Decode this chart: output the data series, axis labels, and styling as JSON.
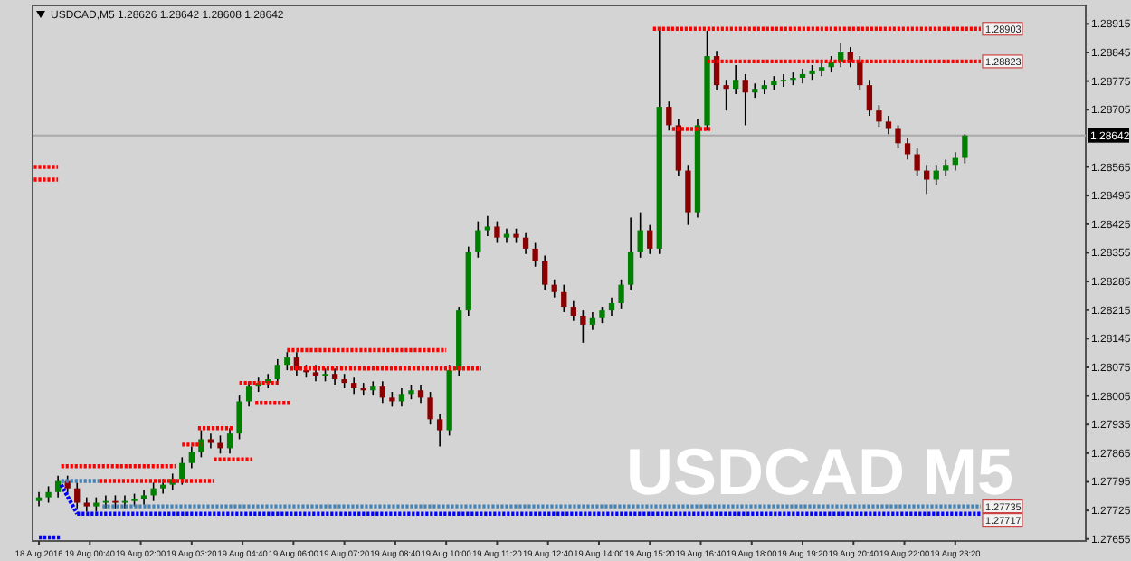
{
  "chart_data": {
    "type": "candlestick",
    "title": "USDCAD,M5  1.28626 1.28642 1.28608 1.28642",
    "annotations": [
      "USDCAD M5",
      {
        "text": "1.28903",
        "x": "2016-08-20T00:00",
        "y": 1.28903
      },
      {
        "text": "1.28823",
        "x": "2016-08-20T00:00",
        "y": 1.28823
      },
      {
        "text": "1.27735",
        "x": "2016-08-20T00:00",
        "y": 1.27735
      },
      {
        "text": "1.27717",
        "x": "2016-08-20T00:00",
        "y": 1.27717
      }
    ],
    "xlim": [
      "2016-08-18T23:10",
      "2016-08-20T02:45"
    ],
    "xticks": [
      {
        "value": "2016-08-18T23:20",
        "label": "18 Aug 2016"
      },
      {
        "value": "2016-08-19T00:40",
        "label": "19 Aug 00:40"
      },
      {
        "value": "2016-08-19T02:00",
        "label": "19 Aug 02:00"
      },
      {
        "value": "2016-08-19T03:20",
        "label": "19 Aug 03:20"
      },
      {
        "value": "2016-08-19T04:40",
        "label": "19 Aug 04:40"
      },
      {
        "value": "2016-08-19T06:00",
        "label": "19 Aug 06:00"
      },
      {
        "value": "2016-08-19T07:20",
        "label": "19 Aug 07:20"
      },
      {
        "value": "2016-08-19T08:40",
        "label": "19 Aug 08:40"
      },
      {
        "value": "2016-08-19T10:00",
        "label": "19 Aug 10:00"
      },
      {
        "value": "2016-08-19T11:20",
        "label": "19 Aug 11:20"
      },
      {
        "value": "2016-08-19T12:40",
        "label": "19 Aug 12:40"
      },
      {
        "value": "2016-08-19T14:00",
        "label": "19 Aug 14:00"
      },
      {
        "value": "2016-08-19T15:20",
        "label": "19 Aug 15:20"
      },
      {
        "value": "2016-08-19T16:40",
        "label": "19 Aug 16:40"
      },
      {
        "value": "2016-08-19T18:00",
        "label": "19 Aug 18:00"
      },
      {
        "value": "2016-08-19T19:20",
        "label": "19 Aug 19:20"
      },
      {
        "value": "2016-08-19T20:40",
        "label": "19 Aug 20:40"
      },
      {
        "value": "2016-08-19T22:00",
        "label": "19 Aug 22:00"
      },
      {
        "value": "2016-08-19T23:20",
        "label": "19 Aug 23:20"
      }
    ],
    "ylim": [
      1.2765,
      1.2896
    ],
    "yticks": [
      1.27655,
      1.27725,
      1.27795,
      1.27865,
      1.27935,
      1.28005,
      1.28075,
      1.28145,
      1.28215,
      1.28285,
      1.28355,
      1.28425,
      1.28495,
      1.28565,
      1.28705,
      1.28775,
      1.28845,
      1.28915
    ],
    "ref_lines": [
      {
        "axis": "y",
        "value": 1.28642,
        "label": "1.28642",
        "color": "#a9a9a9"
      }
    ],
    "series": [
      {
        "x": [
          "2016-08-18T23:20",
          "2016-08-18T23:35",
          "2016-08-18T23:50",
          "2016-08-19T00:05",
          "2016-08-19T00:20",
          "2016-08-19T00:35",
          "2016-08-19T00:50",
          "2016-08-19T01:05",
          "2016-08-19T01:20",
          "2016-08-19T01:35",
          "2016-08-19T01:50",
          "2016-08-19T02:05",
          "2016-08-19T02:20",
          "2016-08-19T02:35",
          "2016-08-19T02:50",
          "2016-08-19T03:05",
          "2016-08-19T03:20",
          "2016-08-19T03:35",
          "2016-08-19T03:50",
          "2016-08-19T04:05",
          "2016-08-19T04:20",
          "2016-08-19T04:35",
          "2016-08-19T04:50",
          "2016-08-19T05:05",
          "2016-08-19T05:20",
          "2016-08-19T05:35",
          "2016-08-19T05:50",
          "2016-08-19T06:05",
          "2016-08-19T06:20",
          "2016-08-19T06:35",
          "2016-08-19T06:50",
          "2016-08-19T07:05",
          "2016-08-19T07:20",
          "2016-08-19T07:35",
          "2016-08-19T07:50",
          "2016-08-19T08:05",
          "2016-08-19T08:20",
          "2016-08-19T08:35",
          "2016-08-19T08:50",
          "2016-08-19T09:05",
          "2016-08-19T09:20",
          "2016-08-19T09:35",
          "2016-08-19T09:50",
          "2016-08-19T10:05",
          "2016-08-19T10:20",
          "2016-08-19T10:35",
          "2016-08-19T10:50",
          "2016-08-19T11:05",
          "2016-08-19T11:20",
          "2016-08-19T11:35",
          "2016-08-19T11:50",
          "2016-08-19T12:05",
          "2016-08-19T12:20",
          "2016-08-19T12:35",
          "2016-08-19T12:50",
          "2016-08-19T13:05",
          "2016-08-19T13:20",
          "2016-08-19T13:35",
          "2016-08-19T13:50",
          "2016-08-19T14:05",
          "2016-08-19T14:20",
          "2016-08-19T14:35",
          "2016-08-19T14:50",
          "2016-08-19T15:05",
          "2016-08-19T15:20",
          "2016-08-19T15:35",
          "2016-08-19T15:50",
          "2016-08-19T16:05",
          "2016-08-19T16:20",
          "2016-08-19T16:35",
          "2016-08-19T16:50",
          "2016-08-19T17:05",
          "2016-08-19T17:20",
          "2016-08-19T17:35",
          "2016-08-19T17:50",
          "2016-08-19T18:05",
          "2016-08-19T18:20",
          "2016-08-19T18:35",
          "2016-08-19T18:50",
          "2016-08-19T19:05",
          "2016-08-19T19:20",
          "2016-08-19T19:35",
          "2016-08-19T19:50",
          "2016-08-19T20:05",
          "2016-08-19T20:20",
          "2016-08-19T20:35",
          "2016-08-19T20:50",
          "2016-08-19T21:05",
          "2016-08-19T21:20",
          "2016-08-19T21:35",
          "2016-08-19T21:50",
          "2016-08-19T22:05",
          "2016-08-19T22:20",
          "2016-08-19T22:35",
          "2016-08-19T22:50",
          "2016-08-19T23:05",
          "2016-08-19T23:20",
          "2016-08-19T23:35"
        ],
        "ohlc": [
          [
            1.27748,
            1.2777,
            1.27735,
            1.27757
          ],
          [
            1.27757,
            1.27784,
            1.27744,
            1.2777
          ],
          [
            1.2777,
            1.2781,
            1.27757,
            1.27797
          ],
          [
            1.27797,
            1.2781,
            1.27766,
            1.27779
          ],
          [
            1.27779,
            1.27793,
            1.2773,
            1.27744
          ],
          [
            1.27744,
            1.27757,
            1.27722,
            1.27735
          ],
          [
            1.27735,
            1.27757,
            1.27722,
            1.27744
          ],
          [
            1.27744,
            1.27762,
            1.2773,
            1.27748
          ],
          [
            1.27748,
            1.27762,
            1.2773,
            1.27744
          ],
          [
            1.27744,
            1.27762,
            1.2773,
            1.27748
          ],
          [
            1.27748,
            1.27766,
            1.27735,
            1.27753
          ],
          [
            1.27753,
            1.27775,
            1.27739,
            1.27762
          ],
          [
            1.27762,
            1.27793,
            1.27748,
            1.27779
          ],
          [
            1.27779,
            1.27802,
            1.27766,
            1.27788
          ],
          [
            1.27788,
            1.27815,
            1.27775,
            1.27802
          ],
          [
            1.27802,
            1.27855,
            1.27788,
            1.27841
          ],
          [
            1.27841,
            1.27881,
            1.27828,
            1.27868
          ],
          [
            1.27868,
            1.27921,
            1.27855,
            1.27899
          ],
          [
            1.27899,
            1.27913,
            1.27877,
            1.2789
          ],
          [
            1.2789,
            1.27908,
            1.27864,
            1.27877
          ],
          [
            1.27877,
            1.27926,
            1.27864,
            1.27913
          ],
          [
            1.27913,
            1.28006,
            1.27899,
            1.27992
          ],
          [
            1.27992,
            1.28041,
            1.27979,
            1.28028
          ],
          [
            1.28028,
            1.2805,
            1.28015,
            1.28037
          ],
          [
            1.28037,
            1.28059,
            1.28024,
            1.28046
          ],
          [
            1.28046,
            1.28095,
            1.28032,
            1.28081
          ],
          [
            1.28081,
            1.28112,
            1.28068,
            1.28099
          ],
          [
            1.28099,
            1.28112,
            1.28055,
            1.28068
          ],
          [
            1.28068,
            1.28081,
            1.2805,
            1.28063
          ],
          [
            1.28063,
            1.28081,
            1.28041,
            1.28055
          ],
          [
            1.28055,
            1.28072,
            1.28041,
            1.28059
          ],
          [
            1.28059,
            1.28072,
            1.28032,
            1.28046
          ],
          [
            1.28046,
            1.28059,
            1.28024,
            1.28037
          ],
          [
            1.28037,
            1.2805,
            1.2801,
            1.28024
          ],
          [
            1.28024,
            1.28037,
            1.28006,
            1.28019
          ],
          [
            1.28019,
            1.28041,
            1.28006,
            1.28028
          ],
          [
            1.28028,
            1.28041,
            1.27988,
            1.28001
          ],
          [
            1.28001,
            1.28015,
            1.27979,
            1.27992
          ],
          [
            1.27992,
            1.28024,
            1.27979,
            1.2801
          ],
          [
            1.2801,
            1.28032,
            1.27997,
            1.28019
          ],
          [
            1.28019,
            1.28032,
            1.27988,
            1.28001
          ],
          [
            1.28001,
            1.28015,
            1.27935,
            1.27948
          ],
          [
            1.27948,
            1.27961,
            1.27881,
            1.27921
          ],
          [
            1.27921,
            1.28081,
            1.27908,
            1.28068
          ],
          [
            1.28068,
            1.28223,
            1.28055,
            1.28214
          ],
          [
            1.28214,
            1.2837,
            1.28201,
            1.28357
          ],
          [
            1.28357,
            1.28432,
            1.28343,
            1.2841
          ],
          [
            1.2841,
            1.28445,
            1.28396,
            1.28419
          ],
          [
            1.28419,
            1.28432,
            1.28379,
            1.28392
          ],
          [
            1.28392,
            1.28414,
            1.28379,
            1.28401
          ],
          [
            1.28401,
            1.28414,
            1.28379,
            1.28392
          ],
          [
            1.28392,
            1.28405,
            1.28352,
            1.28365
          ],
          [
            1.28365,
            1.28379,
            1.28321,
            1.28334
          ],
          [
            1.28334,
            1.28348,
            1.28263,
            1.28277
          ],
          [
            1.28277,
            1.2829,
            1.28246,
            1.28259
          ],
          [
            1.28259,
            1.28277,
            1.2821,
            1.28223
          ],
          [
            1.28223,
            1.28237,
            1.28188,
            1.28201
          ],
          [
            1.28201,
            1.28214,
            1.28135,
            1.28179
          ],
          [
            1.28179,
            1.2821,
            1.28166,
            1.28197
          ],
          [
            1.28197,
            1.28223,
            1.28183,
            1.28214
          ],
          [
            1.28214,
            1.28246,
            1.28201,
            1.28232
          ],
          [
            1.28232,
            1.2829,
            1.28219,
            1.28277
          ],
          [
            1.28277,
            1.28441,
            1.28263,
            1.28357
          ],
          [
            1.28357,
            1.28454,
            1.28343,
            1.2841
          ],
          [
            1.2841,
            1.28423,
            1.28352,
            1.28365
          ],
          [
            1.28365,
            1.28898,
            1.28352,
            1.28712
          ],
          [
            1.28712,
            1.28725,
            1.28654,
            1.28667
          ],
          [
            1.28667,
            1.28681,
            1.28543,
            1.28556
          ],
          [
            1.28556,
            1.2857,
            1.28423,
            1.28454
          ],
          [
            1.28454,
            1.28681,
            1.28441,
            1.28667
          ],
          [
            1.28667,
            1.28898,
            1.28654,
            1.28836
          ],
          [
            1.28836,
            1.28849,
            1.28752,
            1.28765
          ],
          [
            1.28765,
            1.28778,
            1.28703,
            1.28756
          ],
          [
            1.28756,
            1.28814,
            1.28743,
            1.28778
          ],
          [
            1.28778,
            1.28792,
            1.28667,
            1.28747
          ],
          [
            1.28747,
            1.28769,
            1.28734,
            1.28756
          ],
          [
            1.28756,
            1.28778,
            1.28743,
            1.28765
          ],
          [
            1.28765,
            1.28787,
            1.28752,
            1.28774
          ],
          [
            1.28774,
            1.28792,
            1.28761,
            1.28778
          ],
          [
            1.28778,
            1.28796,
            1.28765,
            1.28783
          ],
          [
            1.28783,
            1.28805,
            1.28769,
            1.28792
          ],
          [
            1.28792,
            1.28814,
            1.28778,
            1.28801
          ],
          [
            1.28801,
            1.28823,
            1.28787,
            1.28809
          ],
          [
            1.28809,
            1.28836,
            1.28796,
            1.28823
          ],
          [
            1.28823,
            1.28867,
            1.28809,
            1.28845
          ],
          [
            1.28845,
            1.28858,
            1.28809,
            1.28823
          ],
          [
            1.28823,
            1.28836,
            1.28752,
            1.28765
          ],
          [
            1.28765,
            1.28778,
            1.2869,
            1.28703
          ],
          [
            1.28703,
            1.28716,
            1.28663,
            1.28676
          ],
          [
            1.28676,
            1.2869,
            1.28645,
            1.28658
          ],
          [
            1.28658,
            1.28667,
            1.2861,
            1.28623
          ],
          [
            1.28623,
            1.28636,
            1.28583,
            1.28596
          ],
          [
            1.28596,
            1.2861,
            1.28543,
            1.28556
          ],
          [
            1.28556,
            1.2857,
            1.28499,
            1.28534
          ],
          [
            1.28534,
            1.2857,
            1.28521,
            1.28556
          ],
          [
            1.28556,
            1.28583,
            1.28543,
            1.2857
          ],
          [
            1.2857,
            1.28601,
            1.28556,
            1.28587
          ],
          [
            1.28587,
            1.28645,
            1.28574,
            1.28642
          ]
        ],
        "colors": [
          "#008000",
          "#008000",
          "#008000",
          "#8b0000",
          "#8b0000",
          "#8b0000",
          "#008000",
          "#008000",
          "#8b0000",
          "#008000",
          "#008000",
          "#008000",
          "#008000",
          "#008000",
          "#008000",
          "#008000",
          "#008000",
          "#008000",
          "#8b0000",
          "#8b0000",
          "#008000",
          "#008000",
          "#008000",
          "#008000",
          "#008000",
          "#008000",
          "#008000",
          "#8b0000",
          "#8b0000",
          "#8b0000",
          "#008000",
          "#8b0000",
          "#8b0000",
          "#8b0000",
          "#8b0000",
          "#008000",
          "#8b0000",
          "#8b0000",
          "#008000",
          "#008000",
          "#8b0000",
          "#8b0000",
          "#8b0000",
          "#008000",
          "#008000",
          "#008000",
          "#008000",
          "#008000",
          "#8b0000",
          "#008000",
          "#8b0000",
          "#8b0000",
          "#8b0000",
          "#8b0000",
          "#8b0000",
          "#8b0000",
          "#8b0000",
          "#8b0000",
          "#008000",
          "#008000",
          "#008000",
          "#008000",
          "#008000",
          "#008000",
          "#8b0000",
          "#008000",
          "#8b0000",
          "#8b0000",
          "#8b0000",
          "#008000",
          "#008000",
          "#8b0000",
          "#8b0000",
          "#008000",
          "#8b0000",
          "#008000",
          "#008000",
          "#008000",
          "#008000",
          "#008000",
          "#008000",
          "#008000",
          "#008000",
          "#008000",
          "#008000",
          "#8b0000",
          "#8b0000",
          "#8b0000",
          "#8b0000",
          "#8b0000",
          "#8b0000",
          "#8b0000",
          "#8b0000",
          "#8b0000",
          "#008000",
          "#008000",
          "#008000",
          "#008000"
        ]
      },
      {
        "type": "line",
        "color": "#ff0000",
        "line_style": "dotted",
        "x": [
          "2016-08-19T15:25",
          "2016-08-20T00:00"
        ],
        "values": [
          1.28903,
          1.28903
        ]
      },
      {
        "type": "line",
        "color": "#ff0000",
        "line_style": "dotted",
        "x": [
          "2016-08-19T16:50",
          "2016-08-20T00:00"
        ],
        "values": [
          1.28823,
          1.28823
        ]
      },
      {
        "type": "line",
        "color": "#ff0000",
        "line_style": "dotted",
        "x": [
          "2016-08-19T15:55",
          "2016-08-19T16:55"
        ],
        "values": [
          1.28658,
          1.28658
        ]
      },
      {
        "type": "line",
        "color": "#ff0000",
        "line_style": "dotted",
        "x": [
          "2016-08-19T05:50",
          "2016-08-19T10:00"
        ],
        "values": [
          1.28117,
          1.28117
        ]
      },
      {
        "type": "line",
        "color": "#ff0000",
        "line_style": "dotted",
        "x": [
          "2016-08-19T05:55",
          "2016-08-19T10:55"
        ],
        "values": [
          1.28072,
          1.28072
        ]
      },
      {
        "type": "line",
        "color": "#ff0000",
        "line_style": "dotted",
        "x": [
          "2016-08-19T04:35",
          "2016-08-19T05:35"
        ],
        "values": [
          1.28037,
          1.28037
        ]
      },
      {
        "type": "line",
        "color": "#ff0000",
        "line_style": "dotted",
        "x": [
          "2016-08-19T05:00",
          "2016-08-19T05:55"
        ],
        "values": [
          1.27988,
          1.27988
        ]
      },
      {
        "type": "line",
        "color": "#ff0000",
        "line_style": "dotted",
        "x": [
          "2016-08-19T03:30",
          "2016-08-19T04:25"
        ],
        "values": [
          1.27926,
          1.27926
        ]
      },
      {
        "type": "line",
        "color": "#ff0000",
        "line_style": "dotted",
        "x": [
          "2016-08-19T03:05",
          "2016-08-19T03:35"
        ],
        "values": [
          1.27886,
          1.27886
        ]
      },
      {
        "type": "line",
        "color": "#ff0000",
        "line_style": "dotted",
        "x": [
          "2016-08-19T03:55",
          "2016-08-19T04:55"
        ],
        "values": [
          1.2785,
          1.2785
        ]
      },
      {
        "type": "line",
        "color": "#ff0000",
        "line_style": "dotted",
        "x": [
          "2016-08-18T23:55",
          "2016-08-19T02:55"
        ],
        "values": [
          1.27833,
          1.27833
        ]
      },
      {
        "type": "line",
        "color": "#ff0000",
        "line_style": "dotted",
        "x": [
          "2016-08-19T00:55",
          "2016-08-19T03:55"
        ],
        "values": [
          1.27797,
          1.27797
        ]
      },
      {
        "type": "line",
        "color": "#4682b4",
        "line_style": "dotted",
        "x": [
          "2016-08-18T23:55",
          "2016-08-19T00:55"
        ],
        "values": [
          1.27797,
          1.27797
        ]
      },
      {
        "type": "line",
        "color": "#4682b4",
        "line_style": "dotted",
        "x": [
          "2016-08-19T01:00",
          "2016-08-20T00:00"
        ],
        "values": [
          1.27735,
          1.27735
        ]
      },
      {
        "type": "line",
        "color": "#0000ff",
        "line_style": "dotted",
        "x": [
          "2016-08-19T00:20",
          "2016-08-20T00:00"
        ],
        "values": [
          1.27717,
          1.27717
        ]
      },
      {
        "type": "line",
        "color": "#0000ff",
        "line_style": "dotted",
        "x": [
          "2016-08-18T23:55",
          "2016-08-19T00:20"
        ],
        "values": [
          1.27788,
          1.27717
        ]
      },
      {
        "type": "line",
        "color": "#ff0000",
        "line_style": "dotted",
        "x": [
          "2016-08-18T23:12",
          "2016-08-18T23:50"
        ],
        "values": [
          1.28565,
          1.28565
        ]
      },
      {
        "type": "line",
        "color": "#ff0000",
        "line_style": "dotted",
        "x": [
          "2016-08-18T23:12",
          "2016-08-18T23:50"
        ],
        "values": [
          1.28534,
          1.28534
        ]
      },
      {
        "type": "line",
        "color": "#0000ff",
        "line_style": "dotted",
        "x": [
          "2016-08-18T23:20",
          "2016-08-18T23:53"
        ],
        "values": [
          1.27659,
          1.27659
        ]
      }
    ]
  }
}
